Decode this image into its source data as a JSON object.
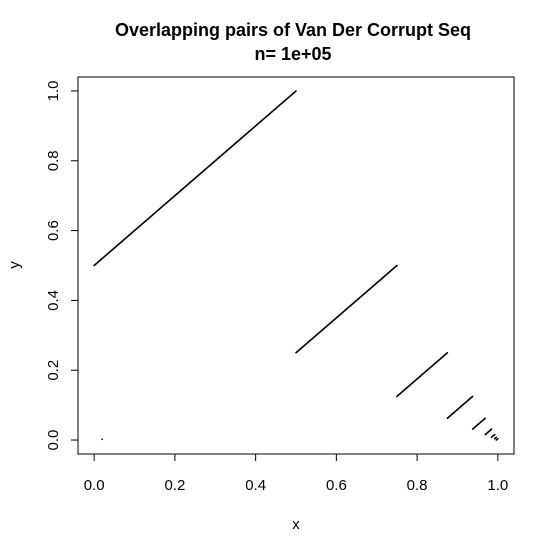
{
  "chart_data": {
    "type": "scatter",
    "title": "Overlapping pairs of Van Der Corrupt Seq",
    "subtitle": "n= 1e+05",
    "xlabel": "x",
    "ylabel": "y",
    "xlim": [
      -0.04,
      1.04
    ],
    "ylim": [
      -0.04,
      1.04
    ],
    "x_ticks": [
      "0.0",
      "0.2",
      "0.4",
      "0.6",
      "0.8",
      "1.0"
    ],
    "y_ticks": [
      "0.0",
      "0.2",
      "0.4",
      "0.6",
      "0.8",
      "1.0"
    ],
    "grid": false,
    "series": [
      {
        "segments": [
          {
            "x": [
              0.0,
              0.5
            ],
            "y": [
              0.5,
              1.0
            ]
          },
          {
            "x": [
              0.5,
              0.75
            ],
            "y": [
              0.25,
              0.5
            ]
          },
          {
            "x": [
              0.75,
              0.875
            ],
            "y": [
              0.125,
              0.25
            ]
          },
          {
            "x": [
              0.875,
              0.9375
            ],
            "y": [
              0.0625,
              0.125
            ]
          },
          {
            "x": [
              0.9375,
              0.96875
            ],
            "y": [
              0.03125,
              0.0625
            ]
          },
          {
            "x": [
              0.96875,
              0.984375
            ],
            "y": [
              0.015625,
              0.03125
            ]
          },
          {
            "x": [
              0.984375,
              0.9921875
            ],
            "y": [
              0.0078125,
              0.015625
            ]
          },
          {
            "x": [
              0.9921875,
              0.99609375
            ],
            "y": [
              0.00390625,
              0.0078125
            ]
          },
          {
            "x": [
              0.99609375,
              1.0
            ],
            "y": [
              0.0,
              0.00390625
            ]
          }
        ],
        "points": [
          {
            "x": 0.02,
            "y": 0.002
          }
        ]
      }
    ]
  }
}
